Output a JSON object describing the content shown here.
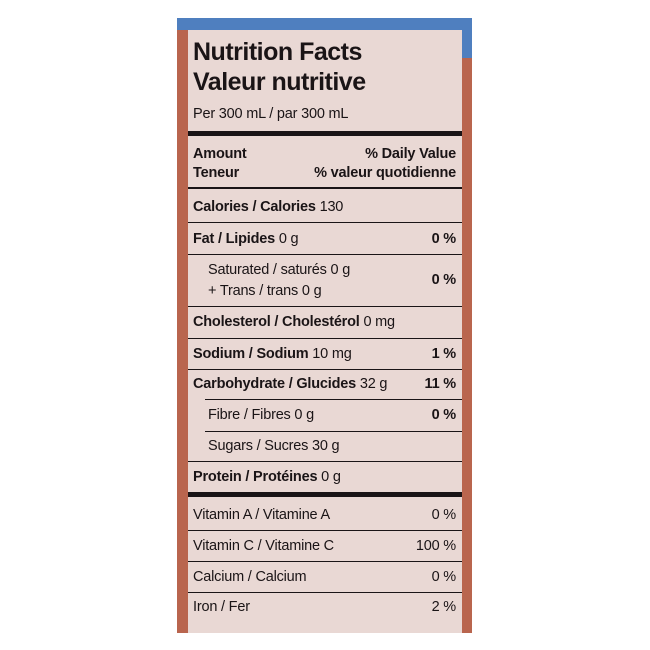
{
  "header": {
    "title_en": "Nutrition Facts",
    "title_fr": "Valeur nutritive",
    "serving": "Per 300 mL / par 300 mL"
  },
  "columns": {
    "amount_en": "Amount",
    "dv_en": "% Daily Value",
    "amount_fr": "Teneur",
    "dv_fr": "% valeur quotidienne"
  },
  "rows": [
    {
      "label": "Calories / Calories",
      "amount": "130"
    },
    {
      "label": "Fat / Lipides",
      "amount": "0 g",
      "dv": "0 %"
    },
    {
      "lines": [
        "Saturated / saturés 0 g",
        "+ Trans / trans 0 g"
      ],
      "dv": "0 %"
    },
    {
      "label": "Cholesterol / Cholestérol",
      "amount": "0 mg"
    },
    {
      "label": "Sodium / Sodium",
      "amount": "10 mg",
      "dv": "1 %"
    },
    {
      "label": "Carbohydrate / Glucides",
      "amount": "32 g",
      "dv": "11 %"
    },
    {
      "sub": "Fibre / Fibres 0 g",
      "dv": "0 %"
    },
    {
      "sub": "Sugars / Sucres 30 g"
    },
    {
      "label": "Protein / Protéines",
      "amount": "0 g"
    },
    {
      "text": "Vitamin A / Vitamine A",
      "dv": "0 %"
    },
    {
      "text": "Vitamin C / Vitamine C",
      "dv": "100 %"
    },
    {
      "text": "Calcium / Calcium",
      "dv": "0 %"
    },
    {
      "text": "Iron / Fer",
      "dv": "2 %"
    }
  ]
}
